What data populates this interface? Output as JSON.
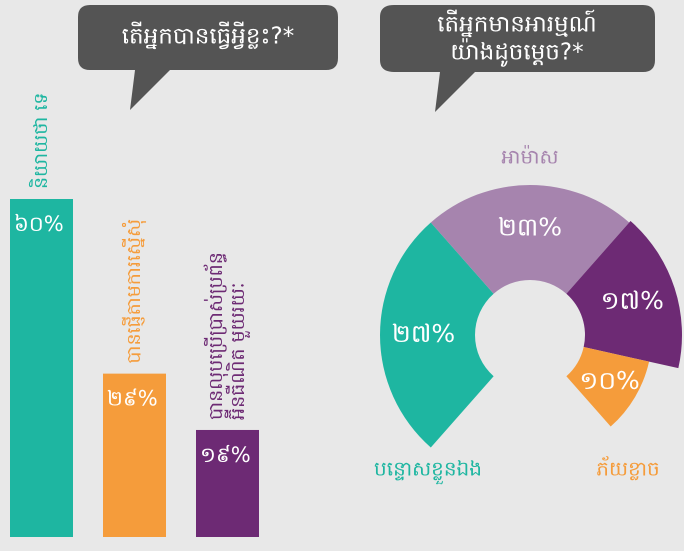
{
  "chart_data": [
    {
      "type": "bar",
      "title": "តើអ្នកបានធ្វើអ្វីខ្លះ?*",
      "categories": [
        "និយាយថា ទេ",
        "បានផ្ញើតាមការស្នើសុំ",
        [
          "បានលុបប្រើប្រាស់ប្រព័ន្ធ",
          "អ៊ីនធឺណិត មួយរយៈ"
        ]
      ],
      "values": [
        60,
        29,
        19
      ],
      "value_labels": [
        "៦០%",
        "២៩%",
        "១៩%"
      ],
      "colors": [
        "#1eb6a1",
        "#f59c3b",
        "#6d2a74"
      ]
    },
    {
      "type": "pie",
      "title": [
        "តើអ្នកមានអារម្មណ៍",
        "យ៉ាងដូចម្តេច?*"
      ],
      "categories": [
        "បន្ទោសខ្លួនឯង",
        "អាម៉ាស",
        null,
        "ភ័យខ្លាច"
      ],
      "values": [
        27,
        23,
        17,
        10
      ],
      "value_labels": [
        "២៧%",
        "២៣%",
        "១៧%",
        "១០%"
      ],
      "colors": [
        "#1eb6a1",
        "#a684ae",
        "#6d2a74",
        "#f59c3b"
      ]
    }
  ]
}
